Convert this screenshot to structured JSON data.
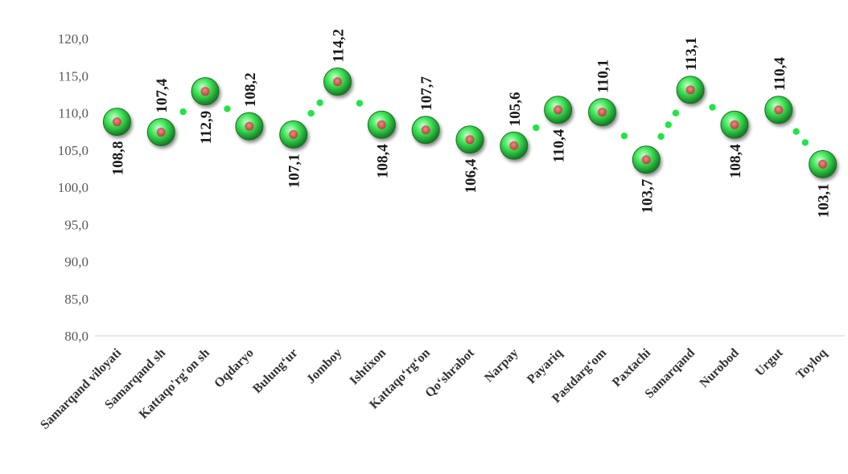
{
  "chart_data": {
    "type": "line",
    "categories": [
      "Samarqand viloyati",
      "Samarqand sh",
      "Kattaqo'rg'on sh",
      "Oqdaryo",
      "Bulungʻur",
      "Jomboy",
      "Ishtixon",
      "Kattaqoʻrgʻon",
      "Qoʻshrabot",
      "Narpay",
      "Payariq",
      "Pastdargʻom",
      "Paxtachi",
      "Samarqand",
      "Nurobod",
      "Urgut",
      "Toyloq"
    ],
    "values": [
      108.8,
      107.4,
      112.9,
      108.2,
      107.1,
      114.2,
      108.4,
      107.7,
      106.4,
      105.6,
      110.4,
      110.1,
      103.7,
      113.1,
      108.4,
      110.4,
      103.1
    ],
    "value_labels": [
      "108,8",
      "107,4",
      "112,9",
      "108,2",
      "107,1",
      "114,2",
      "108,4",
      "107,7",
      "106,4",
      "105,6",
      "110,4",
      "110,1",
      "103,7",
      "113,1",
      "108,4",
      "110,4",
      "103,1"
    ],
    "label_positions": [
      "below",
      "above",
      "below",
      "above",
      "below",
      "above",
      "below",
      "above",
      "below",
      "above",
      "below",
      "above",
      "below",
      "above",
      "below",
      "above",
      "below"
    ],
    "yticks": [
      "80,0",
      "85,0",
      "90,0",
      "95,0",
      "100,0",
      "105,0",
      "110,0",
      "115,0",
      "120,0"
    ],
    "ylim": [
      80,
      120
    ],
    "title": "",
    "xlabel": "",
    "ylabel": "",
    "grid": false,
    "legend": "none",
    "line_style": "dotted",
    "colors": {
      "line": "#22e34a",
      "marker_outer": "#1f9b2f",
      "marker_fill": "#39e04f",
      "marker_center": "#d9534f",
      "axis": "#d0d0d0",
      "tick_text": "#595959"
    }
  }
}
